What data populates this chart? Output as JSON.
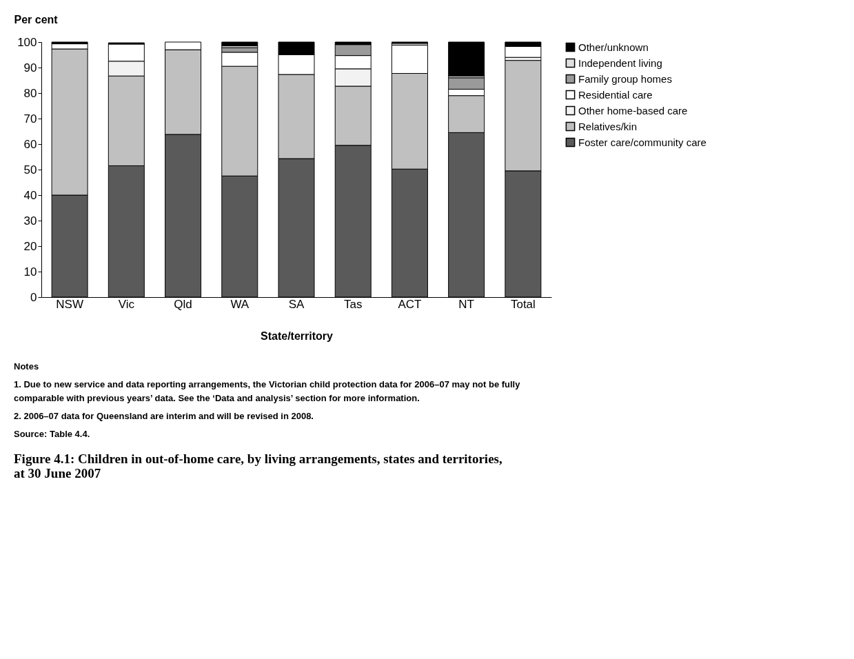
{
  "chart_data": {
    "type": "bar",
    "stacked": true,
    "title": "Figure 4.1: Children in out-of-home care, by living arrangements, states and territories, at 30 June 2007",
    "xlabel": "State/territory",
    "ylabel": "Per cent",
    "categories": [
      "NSW",
      "Vic",
      "Qld",
      "WA",
      "SA",
      "Tas",
      "ACT",
      "NT",
      "Total"
    ],
    "series": [
      {
        "name": "Foster care/community care",
        "color": "#5a5a5a",
        "values": [
          40.0,
          51.5,
          63.8,
          47.5,
          54.3,
          59.5,
          50.2,
          64.5,
          49.5
        ]
      },
      {
        "name": "Relatives/kin",
        "color": "#c0c0c0",
        "values": [
          57.3,
          35.2,
          33.2,
          43.0,
          33.0,
          23.2,
          37.5,
          14.5,
          43.3
        ]
      },
      {
        "name": "Other home-based care",
        "color": "#f2f2f2",
        "values": [
          0,
          5.8,
          0,
          0,
          0,
          6.8,
          0,
          0,
          1.2
        ]
      },
      {
        "name": "Residential care",
        "color": "#ffffff",
        "values": [
          2.0,
          6.7,
          3.0,
          5.5,
          7.7,
          5.2,
          11.1,
          2.5,
          4.3
        ]
      },
      {
        "name": "Family group homes",
        "color": "#9a9a9a",
        "values": [
          0,
          null,
          0,
          1.8,
          0,
          4.3,
          0,
          4.5,
          0
        ]
      },
      {
        "name": "Independent living",
        "color": "#e0e0e0",
        "values": [
          0,
          0,
          0,
          0.7,
          0,
          0,
          0.7,
          0.7,
          0
        ]
      },
      {
        "name": "Other/unknown",
        "color": "#000000",
        "values": [
          0.7,
          0.5,
          0,
          1.5,
          5.0,
          1.0,
          0.5,
          13.3,
          1.7
        ]
      }
    ],
    "ylim": [
      0,
      100
    ],
    "yticks": [
      0,
      10,
      20,
      30,
      40,
      50,
      60,
      70,
      80,
      90,
      100
    ],
    "grid": false,
    "legend": "right",
    "annotations": [
      "Notes",
      "1.  Due to new service and data reporting arrangements, the Victorian child protection data for 2006–07 may not be fully comparable with previous years’ data. See the ‘Data and analysis’ section for more information.",
      "2.  2006–07 data for Queensland are interim and will be revised in 2008.",
      "Source: Table 4.4."
    ]
  }
}
